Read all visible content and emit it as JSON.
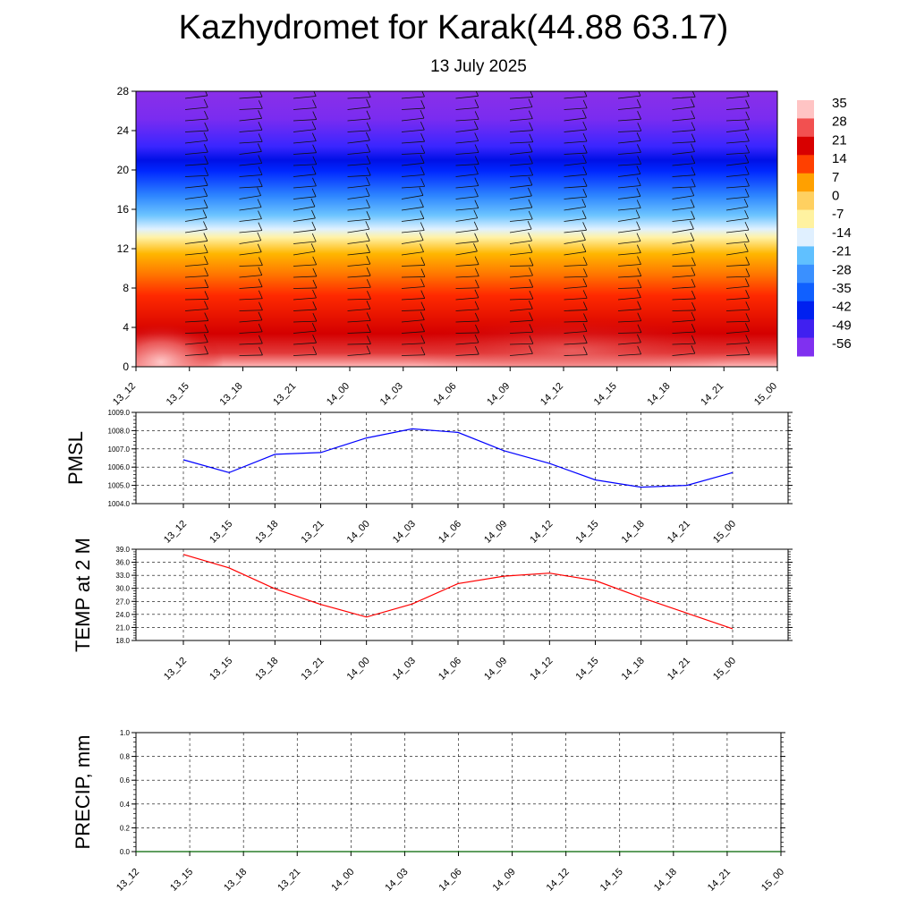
{
  "page": {
    "title": "Kazhydromet for Karak(44.88 63.17)",
    "subtitle": "13 July 2025"
  },
  "chart_data": [
    {
      "id": "profile",
      "type": "heatmap",
      "description": "Time-height cross-section of temperature (filled contours) with wind barbs",
      "x": [
        "13_12",
        "13_15",
        "13_18",
        "13_21",
        "14_00",
        "14_03",
        "14_06",
        "14_09",
        "14_12",
        "14_15",
        "14_18",
        "14_21",
        "15_00"
      ],
      "y_ticks": [
        0,
        4,
        8,
        12,
        16,
        20,
        24,
        28
      ],
      "ylim": [
        0,
        28
      ],
      "colorbar": {
        "labels": [
          "35",
          "28",
          "21",
          "14",
          "7",
          "0",
          "-7",
          "-14",
          "-21",
          "-28",
          "-35",
          "-42",
          "-49",
          "-56"
        ],
        "colors": [
          "#ffc4c4",
          "#f25050",
          "#d80000",
          "#ff4000",
          "#ffa000",
          "#ffd060",
          "#fff2a0",
          "#e0f0ff",
          "#60c0ff",
          "#3a90ff",
          "#1060ff",
          "#0020f0",
          "#4020f0",
          "#8030f0"
        ]
      },
      "surface_temperature": [
        38,
        34,
        30,
        26,
        23.5,
        26,
        31,
        33,
        34,
        32,
        27,
        24,
        21
      ],
      "band_heights": {
        "freezing_level_approx": 13.5,
        "tropopause_cold_core": 21
      },
      "grid": false
    },
    {
      "id": "pmsl",
      "type": "line",
      "ylabel": "PMSL",
      "x": [
        "13_12",
        "13_15",
        "13_18",
        "13_21",
        "14_00",
        "14_03",
        "14_06",
        "14_09",
        "14_12",
        "14_15",
        "14_18",
        "14_21",
        "15_00"
      ],
      "y_ticks": [
        "1004.0",
        "1005.0",
        "1006.0",
        "1007.0",
        "1008.0",
        "1009.0"
      ],
      "ylim": [
        1004,
        1009
      ],
      "series": [
        {
          "color": "#0000ff",
          "values": [
            1006.4,
            1005.7,
            1006.7,
            1006.8,
            1007.6,
            1008.1,
            1007.9,
            1006.9,
            1006.2,
            1005.3,
            1004.9,
            1005.0,
            1005.7
          ]
        }
      ],
      "grid": true
    },
    {
      "id": "temp2m",
      "type": "line",
      "ylabel": "TEMP at 2 M",
      "x": [
        "13_12",
        "13_15",
        "13_18",
        "13_21",
        "14_00",
        "14_03",
        "14_06",
        "14_09",
        "14_12",
        "14_15",
        "14_18",
        "14_21",
        "15_00"
      ],
      "y_ticks": [
        "18.0",
        "21.0",
        "24.0",
        "27.0",
        "30.0",
        "33.0",
        "36.0",
        "39.0"
      ],
      "ylim": [
        18,
        39
      ],
      "series": [
        {
          "color": "#ff0000",
          "values": [
            37.8,
            34.7,
            29.9,
            26.3,
            23.4,
            26.4,
            31.1,
            32.8,
            33.5,
            31.8,
            27.9,
            24.3,
            20.7
          ]
        }
      ],
      "grid": true
    },
    {
      "id": "precip",
      "type": "line",
      "ylabel": "PRECIP, mm",
      "x": [
        "13_12",
        "13_15",
        "13_18",
        "13_21",
        "14_00",
        "14_03",
        "14_06",
        "14_09",
        "14_12",
        "14_15",
        "14_18",
        "14_21",
        "15_00"
      ],
      "y_ticks": [
        "0.0",
        "0.2",
        "0.4",
        "0.6",
        "0.8",
        "1.0"
      ],
      "ylim": [
        0,
        1
      ],
      "series": [
        {
          "color": "#006400",
          "values": [
            0,
            0,
            0,
            0,
            0,
            0,
            0,
            0,
            0,
            0,
            0,
            0,
            0
          ]
        }
      ],
      "grid": true
    }
  ]
}
